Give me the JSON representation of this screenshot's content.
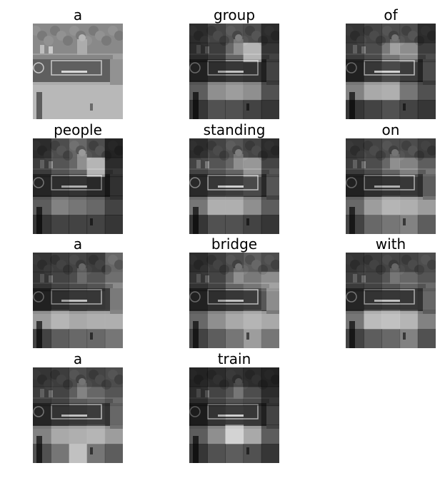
{
  "words": [
    "a",
    "group",
    "of",
    "people",
    "standing",
    "on",
    "a",
    "bridge",
    "with",
    "a",
    "train"
  ],
  "colors": {
    "background": "#ffffff",
    "text": "#000000"
  },
  "attention": [
    [
      [
        0.5,
        0.5,
        0.5,
        0.5,
        0.5
      ],
      [
        0.5,
        0.5,
        0.5,
        0.5,
        0.5
      ],
      [
        0.5,
        0.5,
        0.5,
        0.5,
        0.5
      ],
      [
        0.5,
        0.5,
        0.5,
        0.5,
        0.5
      ],
      [
        0.5,
        0.5,
        0.5,
        0.5,
        0.5
      ]
    ],
    [
      [
        0.1,
        0.25,
        0.35,
        0.3,
        0.1
      ],
      [
        0.1,
        0.2,
        0.45,
        0.85,
        0.15
      ],
      [
        0.2,
        0.35,
        0.45,
        0.4,
        0.2
      ],
      [
        0.2,
        0.4,
        0.45,
        0.4,
        0.15
      ],
      [
        0.05,
        0.15,
        0.15,
        0.1,
        0.05
      ]
    ],
    [
      [
        0.15,
        0.25,
        0.3,
        0.3,
        0.1
      ],
      [
        0.2,
        0.3,
        0.55,
        0.65,
        0.2
      ],
      [
        0.2,
        0.45,
        0.55,
        0.5,
        0.25
      ],
      [
        0.35,
        0.5,
        0.55,
        0.3,
        0.15
      ],
      [
        0.05,
        0.1,
        0.15,
        0.1,
        0.05
      ]
    ],
    [
      [
        0.1,
        0.3,
        0.45,
        0.3,
        0.05
      ],
      [
        0.2,
        0.35,
        0.45,
        0.85,
        0.1
      ],
      [
        0.25,
        0.35,
        0.4,
        0.3,
        0.1
      ],
      [
        0.2,
        0.35,
        0.3,
        0.25,
        0.1
      ],
      [
        0.05,
        0.1,
        0.1,
        0.1,
        0.05
      ]
    ],
    [
      [
        0.1,
        0.25,
        0.35,
        0.25,
        0.1
      ],
      [
        0.25,
        0.35,
        0.45,
        0.7,
        0.25
      ],
      [
        0.3,
        0.45,
        0.5,
        0.55,
        0.3
      ],
      [
        0.3,
        0.55,
        0.55,
        0.4,
        0.2
      ],
      [
        0.05,
        0.15,
        0.15,
        0.1,
        0.05
      ]
    ],
    [
      [
        0.15,
        0.25,
        0.3,
        0.3,
        0.2
      ],
      [
        0.2,
        0.3,
        0.45,
        0.6,
        0.4
      ],
      [
        0.2,
        0.35,
        0.4,
        0.45,
        0.35
      ],
      [
        0.25,
        0.45,
        0.6,
        0.55,
        0.45
      ],
      [
        0.1,
        0.25,
        0.3,
        0.35,
        0.2
      ]
    ],
    [
      [
        0.15,
        0.2,
        0.25,
        0.2,
        0.45
      ],
      [
        0.15,
        0.25,
        0.3,
        0.35,
        0.5
      ],
      [
        0.2,
        0.35,
        0.45,
        0.45,
        0.5
      ],
      [
        0.45,
        0.6,
        0.5,
        0.55,
        0.55
      ],
      [
        0.1,
        0.2,
        0.25,
        0.25,
        0.3
      ]
    ],
    [
      [
        0.1,
        0.2,
        0.3,
        0.4,
        0.3
      ],
      [
        0.15,
        0.25,
        0.45,
        0.55,
        0.65
      ],
      [
        0.2,
        0.35,
        0.45,
        0.5,
        0.6
      ],
      [
        0.25,
        0.4,
        0.5,
        0.6,
        0.5
      ],
      [
        0.1,
        0.2,
        0.3,
        0.45,
        0.3
      ]
    ],
    [
      [
        0.15,
        0.2,
        0.25,
        0.25,
        0.3
      ],
      [
        0.2,
        0.25,
        0.35,
        0.45,
        0.35
      ],
      [
        0.25,
        0.4,
        0.45,
        0.45,
        0.4
      ],
      [
        0.3,
        0.65,
        0.7,
        0.6,
        0.35
      ],
      [
        0.1,
        0.2,
        0.25,
        0.35,
        0.15
      ]
    ],
    [
      [
        0.15,
        0.2,
        0.3,
        0.25,
        0.3
      ],
      [
        0.2,
        0.25,
        0.4,
        0.45,
        0.35
      ],
      [
        0.25,
        0.4,
        0.45,
        0.5,
        0.4
      ],
      [
        0.35,
        0.5,
        0.55,
        0.6,
        0.45
      ],
      [
        0.15,
        0.3,
        0.7,
        0.3,
        0.2
      ]
    ],
    [
      [
        0.05,
        0.1,
        0.15,
        0.1,
        0.05
      ],
      [
        0.1,
        0.25,
        0.35,
        0.3,
        0.1
      ],
      [
        0.15,
        0.4,
        0.5,
        0.45,
        0.2
      ],
      [
        0.2,
        0.4,
        0.85,
        0.5,
        0.2
      ],
      [
        0.05,
        0.15,
        0.2,
        0.15,
        0.05
      ]
    ]
  ]
}
